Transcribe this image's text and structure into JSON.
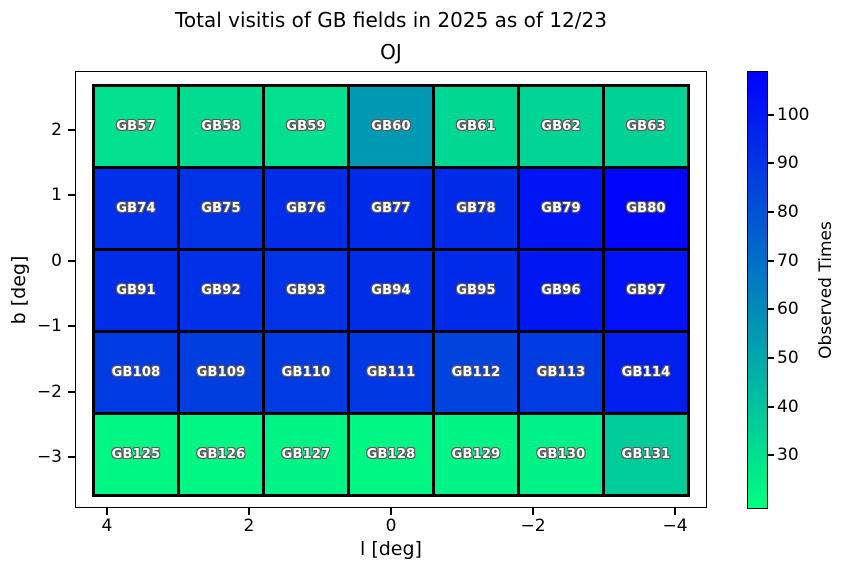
{
  "figure": {
    "title": "Total visitis of GB fields in 2025 as of 12/23",
    "subtitle": "OJ"
  },
  "axes": {
    "xlabel": "l [deg]",
    "ylabel": "b [deg]",
    "x_tick_labels": [
      "4",
      "2",
      "0",
      "−2",
      "−4"
    ],
    "x_tick_values": [
      4,
      2,
      0,
      -2,
      -4
    ],
    "y_tick_labels": [
      "2",
      "1",
      "0",
      "−1",
      "−2",
      "−3"
    ],
    "y_tick_values": [
      2,
      1,
      0,
      -1,
      -2,
      -3
    ],
    "xlim": [
      4.45,
      -4.45
    ],
    "ylim_top": 2.9,
    "ylim_bottom": -3.78
  },
  "colorbar": {
    "label": "Observed Times",
    "ticks": [
      100,
      90,
      80,
      70,
      60,
      50,
      40,
      30
    ],
    "vmin": 19,
    "vmax": 109,
    "cmap": "winter_r",
    "top_color": "#0000ff",
    "bottom_color": "#00ff80"
  },
  "chart_data": {
    "type": "heatmap",
    "title": "Total visitis of GB fields in 2025 as of 12/23",
    "subtitle": "OJ",
    "xlabel": "l [deg]",
    "ylabel": "b [deg]",
    "x_axis_inverted": true,
    "grid": {
      "cols": 7,
      "rows": 5
    },
    "colorbar_label": "Observed Times",
    "colorbar_ticks": [
      100,
      90,
      80,
      70,
      60,
      50,
      40,
      30
    ],
    "value_range": [
      19,
      109
    ],
    "colormap": "green(low) to blue(high), winter_r",
    "rows": [
      {
        "fields": [
          "GB57",
          "GB58",
          "GB59",
          "GB60",
          "GB61",
          "GB62",
          "GB63"
        ],
        "values": [
          30,
          31,
          30,
          55,
          33,
          34,
          35
        ]
      },
      {
        "fields": [
          "GB74",
          "GB75",
          "GB76",
          "GB77",
          "GB78",
          "GB79",
          "GB80"
        ],
        "values": [
          92,
          91,
          93,
          94,
          94,
          102,
          107
        ]
      },
      {
        "fields": [
          "GB91",
          "GB92",
          "GB93",
          "GB94",
          "GB95",
          "GB96",
          "GB97"
        ],
        "values": [
          93,
          92,
          91,
          93,
          94,
          101,
          103
        ]
      },
      {
        "fields": [
          "GB108",
          "GB109",
          "GB110",
          "GB111",
          "GB112",
          "GB113",
          "GB114"
        ],
        "values": [
          88,
          87,
          88,
          89,
          85,
          88,
          98
        ]
      },
      {
        "fields": [
          "GB125",
          "GB126",
          "GB127",
          "GB128",
          "GB129",
          "GB130",
          "GB131"
        ],
        "values": [
          22,
          22,
          23,
          22,
          23,
          24,
          37
        ]
      }
    ]
  }
}
